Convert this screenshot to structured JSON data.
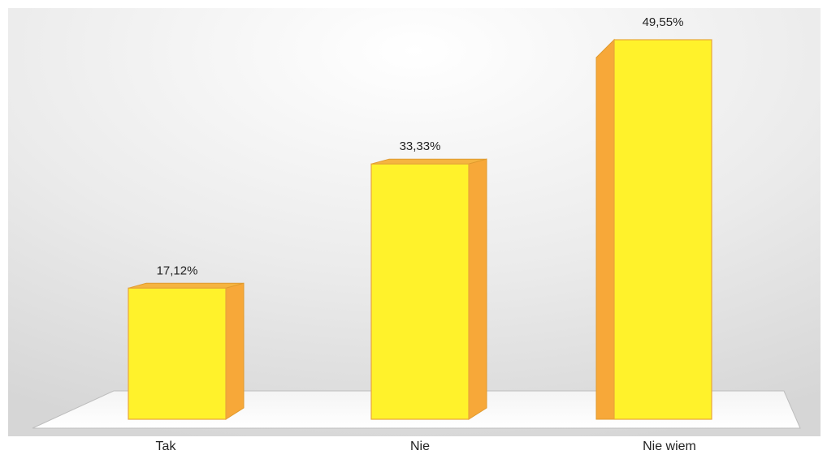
{
  "chart_data": {
    "type": "bar",
    "style": "3d-column",
    "categories": [
      "Tak",
      "Nie",
      "Nie wiem"
    ],
    "values": [
      17.12,
      33.33,
      49.55
    ],
    "data_labels": [
      "17,12%",
      "33,33%",
      "49,55%"
    ],
    "ylim": [
      0,
      50
    ],
    "grid": false,
    "legend": "none",
    "colors": {
      "front": "#FFF22B",
      "side": "#F7A839",
      "top": "#F5B440",
      "floor": "#FFFFFF"
    }
  }
}
